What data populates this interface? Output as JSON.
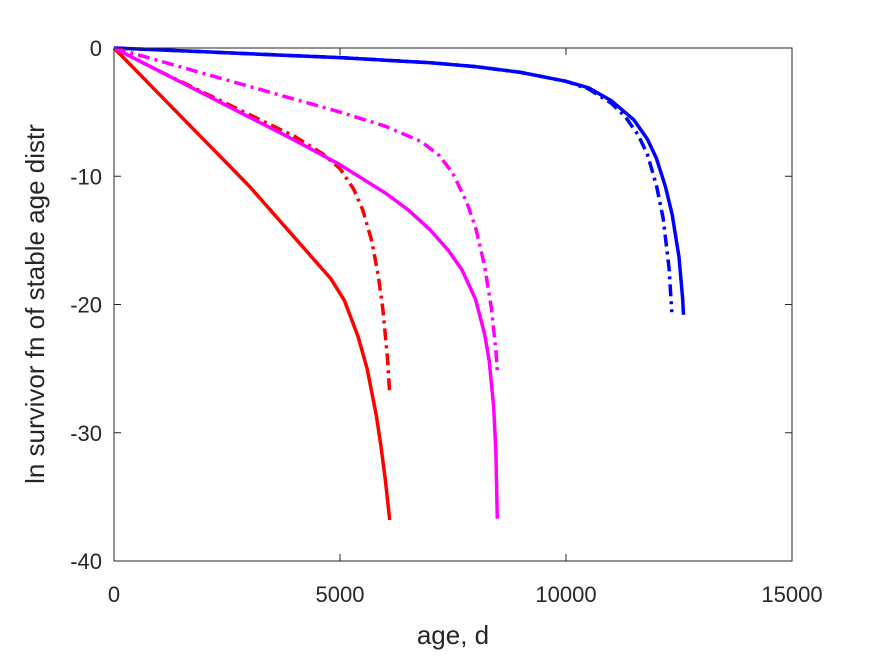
{
  "chart_data": {
    "type": "line",
    "title": "",
    "xlabel": "age, d",
    "ylabel": "ln survivor fn of stable age distr",
    "xlim": [
      0,
      15000
    ],
    "ylim": [
      -40,
      0
    ],
    "xticks": [
      0,
      5000,
      10000,
      15000
    ],
    "yticks": [
      0,
      -10,
      -20,
      -30,
      -40
    ],
    "grid": false,
    "series": [
      {
        "color": "#0000ff",
        "style": "solid",
        "x": [
          0,
          1000,
          2000,
          3000,
          4000,
          5000,
          6000,
          7000,
          8000,
          9000,
          10000,
          10500,
          11000,
          11500,
          11800,
          12000,
          12200,
          12350,
          12500,
          12580,
          12600
        ],
        "y": [
          0,
          -0.15,
          -0.3,
          -0.45,
          -0.6,
          -0.75,
          -0.95,
          -1.15,
          -1.45,
          -1.9,
          -2.6,
          -3.1,
          -4.1,
          -5.6,
          -7.1,
          -8.6,
          -10.8,
          -13.0,
          -16.3,
          -19.5,
          -20.8
        ]
      },
      {
        "color": "#0000ff",
        "style": "dashdot",
        "x": [
          0,
          1000,
          2000,
          3000,
          4000,
          5000,
          6000,
          7000,
          8000,
          9000,
          10000,
          10500,
          11000,
          11300,
          11600,
          11800,
          12000,
          12150,
          12280,
          12340
        ],
        "y": [
          0,
          -0.15,
          -0.3,
          -0.45,
          -0.6,
          -0.75,
          -0.95,
          -1.15,
          -1.45,
          -1.9,
          -2.6,
          -3.2,
          -4.3,
          -5.3,
          -6.8,
          -8.3,
          -10.7,
          -13.3,
          -17.2,
          -20.6
        ]
      },
      {
        "color": "#ff0000",
        "style": "solid",
        "x": [
          0,
          1000,
          2000,
          3000,
          4000,
          4500,
          4800,
          5100,
          5400,
          5600,
          5800,
          5900,
          6000,
          6050,
          6100
        ],
        "y": [
          0,
          -3.6,
          -7.2,
          -10.8,
          -14.8,
          -16.8,
          -18.0,
          -19.7,
          -22.5,
          -25.0,
          -28.6,
          -30.9,
          -33.6,
          -35.2,
          -36.8
        ]
      },
      {
        "color": "#ff0000",
        "style": "dashdot",
        "x": [
          0,
          500,
          1000,
          2000,
          3000,
          4000,
          4600,
          5000,
          5300,
          5500,
          5700,
          5850,
          5950,
          6050,
          6100
        ],
        "y": [
          0,
          -0.9,
          -1.8,
          -3.5,
          -5.2,
          -6.9,
          -8.2,
          -9.4,
          -11.0,
          -12.6,
          -15.0,
          -17.8,
          -20.4,
          -24.2,
          -27.0
        ]
      },
      {
        "color": "#ff00ff",
        "style": "solid",
        "x": [
          0,
          1000,
          2000,
          3000,
          4000,
          5000,
          6000,
          6500,
          7000,
          7400,
          7700,
          8000,
          8200,
          8300,
          8400,
          8450,
          8480
        ],
        "y": [
          0,
          -1.8,
          -3.6,
          -5.4,
          -7.2,
          -9.1,
          -11.3,
          -12.6,
          -14.2,
          -15.8,
          -17.3,
          -19.6,
          -22.3,
          -24.4,
          -28.0,
          -31.5,
          -36.7
        ]
      },
      {
        "color": "#ff00ff",
        "style": "dashdot",
        "x": [
          0,
          1000,
          2000,
          3000,
          4000,
          5000,
          6000,
          6800,
          7200,
          7500,
          7800,
          8000,
          8200,
          8350,
          8450,
          8480
        ],
        "y": [
          0,
          -1.0,
          -2.0,
          -3.0,
          -4.0,
          -5.0,
          -6.1,
          -7.3,
          -8.4,
          -9.8,
          -12.0,
          -14.0,
          -17.0,
          -20.3,
          -23.6,
          -25.2
        ]
      }
    ]
  }
}
